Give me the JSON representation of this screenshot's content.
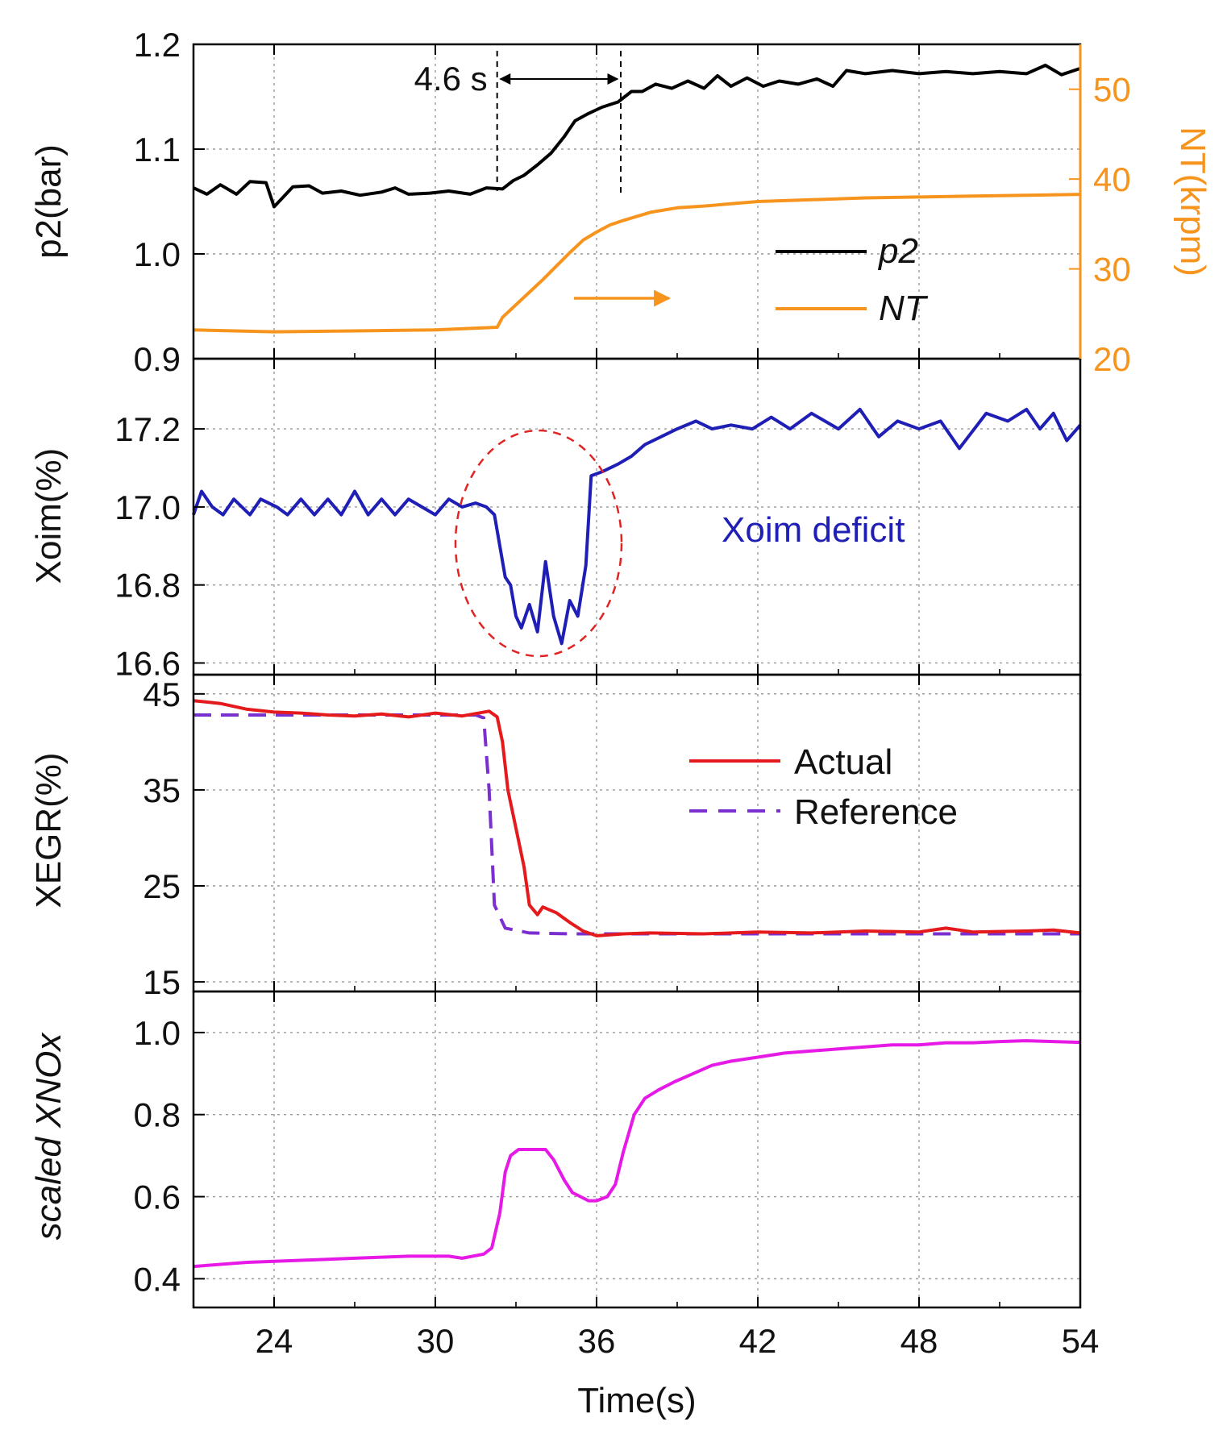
{
  "chart_data": [
    {
      "type": "line",
      "panel": "p2-and-turbo-speed",
      "xlabel": "",
      "xlim": [
        21,
        54
      ],
      "ylabel_left": "p2(bar)",
      "ylim_left": [
        0.9,
        1.2
      ],
      "yticks_left": [
        "0.9",
        "1.0",
        "1.1",
        "1.2"
      ],
      "ylabel_right": "NT(krpm)",
      "ylim_right": [
        20,
        55
      ],
      "yticks_right": [
        "20",
        "30",
        "40",
        "50"
      ],
      "grid": true,
      "legend_position": "middle-right",
      "series": [
        {
          "name": "p2",
          "legend": "p2",
          "axis": "left",
          "color": "#000000",
          "x": [
            21,
            21.5,
            22,
            22.6,
            23.1,
            23.7,
            24,
            24.7,
            25.3,
            25.8,
            26.5,
            27.2,
            28,
            28.5,
            29,
            29.8,
            30.5,
            31.3,
            31.9,
            32.5,
            32.9,
            33.3,
            33.8,
            34.3,
            34.8,
            35.2,
            35.7,
            36.2,
            36.8,
            37.3,
            37.7,
            38.2,
            38.8,
            39.4,
            40,
            40.5,
            41,
            41.6,
            42.2,
            42.8,
            43.5,
            44.2,
            44.8,
            45.3,
            46,
            47,
            48,
            49,
            50,
            51,
            52,
            52.7,
            53.3,
            54
          ],
          "values": [
            1.063,
            1.057,
            1.066,
            1.057,
            1.069,
            1.068,
            1.045,
            1.064,
            1.065,
            1.058,
            1.06,
            1.056,
            1.059,
            1.063,
            1.057,
            1.058,
            1.06,
            1.057,
            1.063,
            1.062,
            1.07,
            1.075,
            1.085,
            1.096,
            1.112,
            1.127,
            1.134,
            1.14,
            1.145,
            1.155,
            1.155,
            1.162,
            1.158,
            1.165,
            1.158,
            1.17,
            1.16,
            1.168,
            1.16,
            1.165,
            1.162,
            1.167,
            1.16,
            1.175,
            1.172,
            1.175,
            1.172,
            1.174,
            1.172,
            1.174,
            1.172,
            1.18,
            1.171,
            1.177
          ]
        },
        {
          "name": "NT",
          "legend": "NT",
          "axis": "right",
          "color": "#F7941D",
          "x": [
            21,
            24,
            27,
            30,
            32.3,
            32.5,
            33,
            33.5,
            34,
            34.5,
            35,
            35.5,
            36,
            36.5,
            37,
            38,
            39,
            40,
            42,
            44,
            46,
            48,
            50,
            52,
            54
          ],
          "values": [
            23.2,
            23,
            23.1,
            23.2,
            23.5,
            24.6,
            26,
            27.4,
            28.8,
            30.3,
            31.8,
            33.2,
            34.1,
            34.9,
            35.4,
            36.3,
            36.8,
            37,
            37.5,
            37.7,
            37.9,
            38,
            38.1,
            38.2,
            38.3
          ]
        }
      ],
      "annotations": [
        {
          "text": "4.6 s",
          "from_x": 32.3,
          "to_x": 36.9
        },
        {
          "arrow": "right",
          "meaning": "orange curve uses right axis"
        }
      ]
    },
    {
      "type": "line",
      "panel": "oxygen-fraction",
      "xlabel": "",
      "xlim": [
        21,
        54
      ],
      "ylabel": "Xoim(%)",
      "ylim": [
        16.57,
        17.38
      ],
      "yticks": [
        "16.6",
        "16.8",
        "17.0",
        "17.2"
      ],
      "grid": true,
      "series": [
        {
          "name": "Xoim",
          "color": "#1F1FB5",
          "x": [
            21,
            21.3,
            21.7,
            22.1,
            22.5,
            23.1,
            23.5,
            24.1,
            24.5,
            25,
            25.5,
            26,
            26.5,
            27,
            27.5,
            28,
            28.5,
            29,
            29.5,
            30,
            30.5,
            31,
            31.5,
            31.9,
            32.2,
            32.6,
            32.8,
            33,
            33.2,
            33.5,
            33.8,
            34.1,
            34.4,
            34.7,
            35,
            35.3,
            35.6,
            35.8,
            36.2,
            36.8,
            37.3,
            37.8,
            38.4,
            39,
            39.7,
            40.3,
            41,
            41.8,
            42.5,
            43.2,
            44,
            45,
            45.8,
            46.5,
            47.2,
            48,
            48.8,
            49.5,
            50.5,
            51.3,
            52,
            52.5,
            53,
            53.5,
            54
          ],
          "values": [
            16.98,
            17.04,
            17.0,
            16.98,
            17.02,
            16.98,
            17.02,
            17.0,
            16.98,
            17.02,
            16.98,
            17.02,
            16.98,
            17.04,
            16.98,
            17.02,
            16.98,
            17.02,
            17.0,
            16.98,
            17.02,
            17.0,
            17.01,
            17.0,
            16.98,
            16.82,
            16.8,
            16.72,
            16.69,
            16.75,
            16.68,
            16.86,
            16.72,
            16.65,
            16.76,
            16.72,
            16.85,
            17.08,
            17.09,
            17.11,
            17.13,
            17.16,
            17.18,
            17.2,
            17.22,
            17.2,
            17.21,
            17.2,
            17.23,
            17.2,
            17.24,
            17.2,
            17.25,
            17.18,
            17.22,
            17.2,
            17.22,
            17.15,
            17.24,
            17.22,
            17.25,
            17.2,
            17.24,
            17.17,
            17.21
          ]
        }
      ],
      "annotations": [
        {
          "text": "Xoim deficit",
          "highlight": "dashed ellipse around dip"
        }
      ]
    },
    {
      "type": "line",
      "panel": "egr-fraction",
      "xlabel": "",
      "xlim": [
        21,
        54
      ],
      "ylabel": "XEGR(%)",
      "ylim": [
        14,
        47
      ],
      "yticks": [
        "15",
        "25",
        "35",
        "45"
      ],
      "grid": true,
      "legend_position": "upper-right",
      "series": [
        {
          "name": "Actual",
          "legend": "Actual",
          "color": "#E41A1C",
          "dash": "solid",
          "x": [
            21,
            22,
            23,
            24,
            25,
            26,
            27,
            28,
            29,
            30,
            31,
            32,
            32.3,
            32.5,
            32.7,
            33,
            33.3,
            33.5,
            33.8,
            34,
            34.5,
            35,
            35.5,
            36,
            37,
            38,
            40,
            42,
            44,
            46,
            48,
            49,
            50,
            52,
            53,
            54
          ],
          "values": [
            44.3,
            44.0,
            43.4,
            43.1,
            43.0,
            42.8,
            42.7,
            42.9,
            42.6,
            43.0,
            42.7,
            43.2,
            42.6,
            40,
            35,
            31,
            27,
            23,
            22,
            22.8,
            22.2,
            21.2,
            20.3,
            19.8,
            20.0,
            20.1,
            20.0,
            20.2,
            20.1,
            20.3,
            20.2,
            20.6,
            20.2,
            20.3,
            20.4,
            20.1
          ]
        },
        {
          "name": "Reference",
          "legend": "Reference",
          "color": "#7B2FD0",
          "dash": "dashed",
          "x": [
            21,
            31.5,
            31.8,
            32.0,
            32.2,
            32.6,
            33.5,
            35,
            54
          ],
          "values": [
            42.8,
            42.8,
            42.5,
            35,
            23,
            20.6,
            20.1,
            20.0,
            20.0
          ]
        }
      ]
    },
    {
      "type": "line",
      "panel": "nox-fraction",
      "xlabel": "Time(s)",
      "xlim": [
        21,
        54
      ],
      "xticks": [
        "24",
        "30",
        "36",
        "42",
        "48",
        "54"
      ],
      "ylabel": "scaled XNOx",
      "ylim": [
        0.33,
        1.1
      ],
      "yticks": [
        "0.4",
        "0.6",
        "0.8",
        "1.0"
      ],
      "grid": true,
      "series": [
        {
          "name": "scaled XNOx",
          "color": "#E619E6",
          "x": [
            21,
            23,
            25,
            27,
            29,
            30.5,
            31,
            31.8,
            32.1,
            32.4,
            32.6,
            32.8,
            33.1,
            33.5,
            34.1,
            34.4,
            34.8,
            35.1,
            35.4,
            35.7,
            36.0,
            36.4,
            36.7,
            37,
            37.4,
            37.8,
            38.3,
            38.9,
            39.6,
            40.3,
            41,
            42,
            43,
            44,
            45,
            46,
            47,
            48,
            49,
            50,
            51,
            52,
            53,
            54
          ],
          "values": [
            0.43,
            0.44,
            0.445,
            0.45,
            0.455,
            0.455,
            0.45,
            0.46,
            0.475,
            0.56,
            0.66,
            0.7,
            0.715,
            0.715,
            0.715,
            0.69,
            0.64,
            0.61,
            0.6,
            0.59,
            0.59,
            0.6,
            0.63,
            0.71,
            0.8,
            0.84,
            0.86,
            0.88,
            0.9,
            0.92,
            0.93,
            0.94,
            0.95,
            0.955,
            0.96,
            0.965,
            0.97,
            0.97,
            0.975,
            0.975,
            0.978,
            0.98,
            0.978,
            0.976
          ]
        }
      ]
    }
  ]
}
